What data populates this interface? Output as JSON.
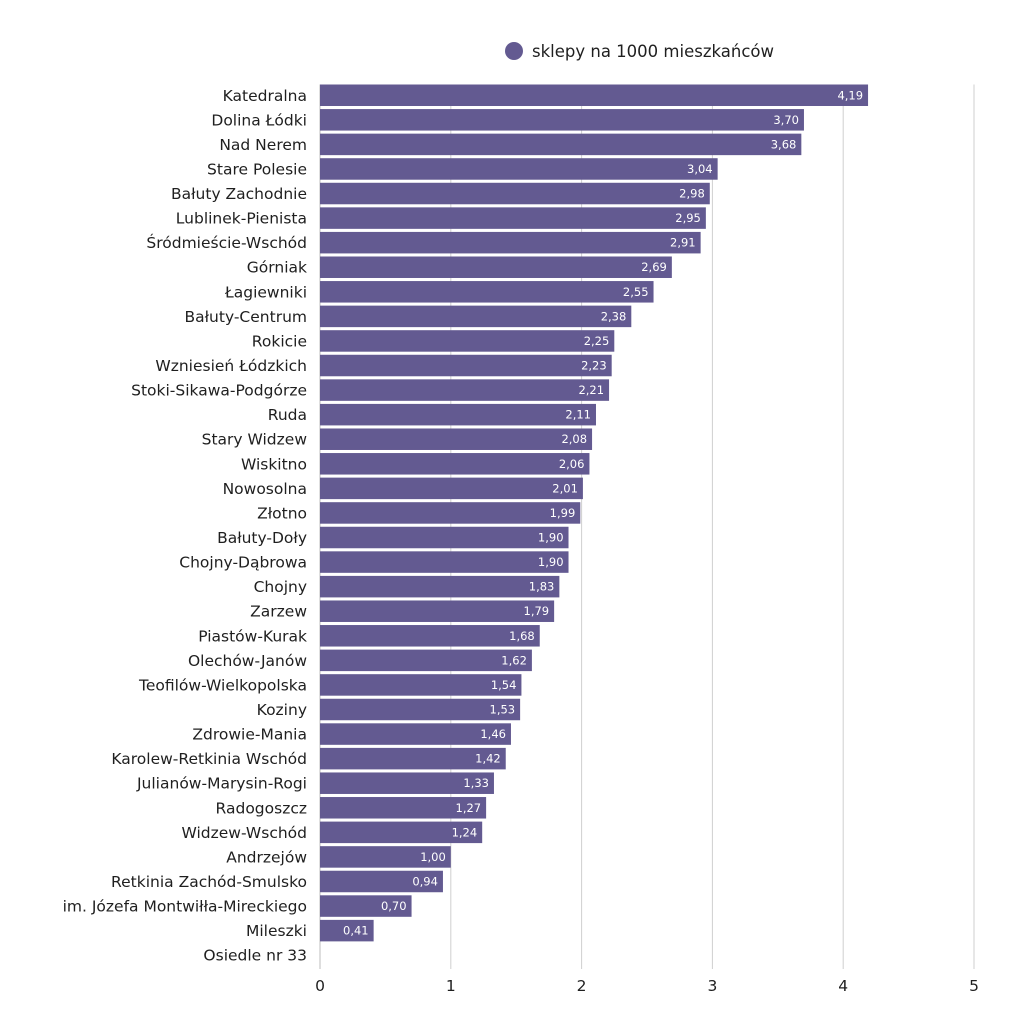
{
  "chart_data": {
    "type": "bar",
    "orientation": "horizontal",
    "title": "",
    "xlabel": "",
    "ylabel": "",
    "xlim": [
      0,
      5
    ],
    "x_ticks": [
      "0",
      "1",
      "2",
      "3",
      "4",
      "5"
    ],
    "grid": "vertical",
    "legend_position": "top",
    "categories": [
      "Katedralna",
      "Dolina Łódki",
      "Nad Nerem",
      "Stare Polesie",
      "Bałuty Zachodnie",
      "Lublinek-Pienista",
      "Śródmieście-Wschód",
      "Górniak",
      "Łagiewniki",
      "Bałuty-Centrum",
      "Rokicie",
      "Wzniesień Łódzkich",
      "Stoki-Sikawa-Podgórze",
      "Ruda",
      "Stary Widzew",
      "Wiskitno",
      "Nowosolna",
      "Złotno",
      "Bałuty-Doły",
      "Chojny-Dąbrowa",
      "Chojny",
      "Zarzew",
      "Piastów-Kurak",
      "Olechów-Janów",
      "Teofilów-Wielkopolska",
      "Koziny",
      "Zdrowie-Mania",
      "Karolew-Retkinia Wschód",
      "Julianów-Marysin-Rogi",
      "Radogoszcz",
      "Widzew-Wschód",
      "Andrzejów",
      "Retkinia Zachód-Smulsko",
      "im. Józefa Montwiłła-Mireckiego",
      "Mileszki",
      "Osiedle nr 33"
    ],
    "series": [
      {
        "name": "sklepy na 1000 mieszkańców",
        "color": "#635a91",
        "values": [
          4.19,
          3.7,
          3.68,
          3.04,
          2.98,
          2.95,
          2.91,
          2.69,
          2.55,
          2.38,
          2.25,
          2.23,
          2.21,
          2.11,
          2.08,
          2.06,
          2.01,
          1.99,
          1.9,
          1.9,
          1.83,
          1.79,
          1.68,
          1.62,
          1.54,
          1.53,
          1.46,
          1.42,
          1.33,
          1.27,
          1.24,
          1.0,
          0.94,
          0.7,
          0.41,
          null
        ],
        "labels": [
          "4,19",
          "3,70",
          "3,68",
          "3,04",
          "2,98",
          "2,95",
          "2,91",
          "2,69",
          "2,55",
          "2,38",
          "2,25",
          "2,23",
          "2,21",
          "2,11",
          "2,08",
          "2,06",
          "2,01",
          "1,99",
          "1,90",
          "1,90",
          "1,83",
          "1,79",
          "1,68",
          "1,62",
          "1,54",
          "1,53",
          "1,46",
          "1,42",
          "1,33",
          "1,27",
          "1,24",
          "1,00",
          "0,94",
          "0,70",
          "0,41",
          ""
        ]
      }
    ]
  },
  "legend": {
    "label": "sklepy na 1000 mieszkańców",
    "color": "#635a91"
  }
}
